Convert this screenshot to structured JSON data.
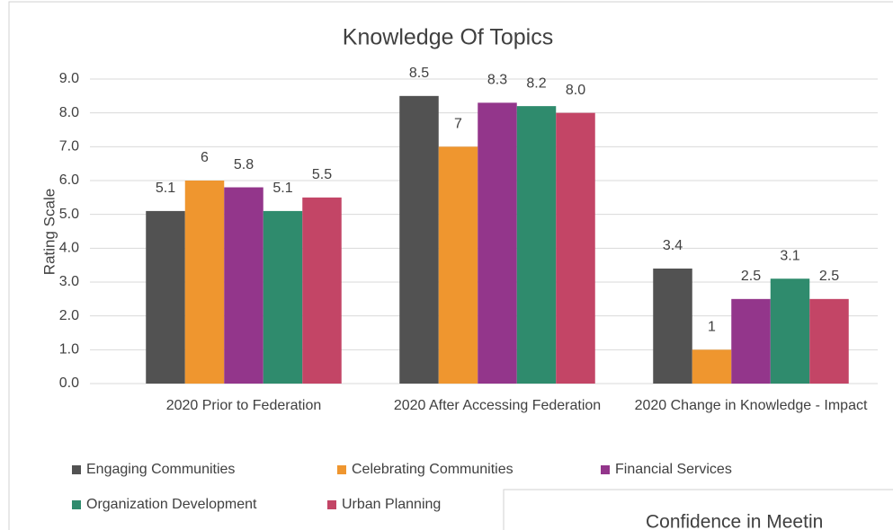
{
  "chart_data": {
    "type": "bar",
    "title": "Knowledge Of Topics",
    "y_label": "Rating Scale",
    "categories": [
      "2020 Prior to Federation",
      "2020 After Accessing Federation",
      "2020 Change in Knowledge - Impact"
    ],
    "series": [
      {
        "name": "Engaging Communities",
        "color": "#525252",
        "values": [
          5.1,
          8.5,
          3.4
        ]
      },
      {
        "name": "Celebrating Communities",
        "color": "#ef962f",
        "values": [
          6,
          7,
          1
        ]
      },
      {
        "name": "Financial Services",
        "color": "#93368b",
        "values": [
          5.8,
          8.3,
          2.5
        ]
      },
      {
        "name": "Organization Development",
        "color": "#2f8b6d",
        "values": [
          5.1,
          8.2,
          3.1
        ]
      },
      {
        "name": "Urban Planning",
        "color": "#c34566",
        "values": [
          5.5,
          8,
          2.5
        ],
        "value_labels": [
          "5.5",
          "8.0",
          "2.5"
        ]
      }
    ],
    "ylim": [
      0,
      9
    ],
    "yticks": [
      {
        "value": 0,
        "label": "0.0"
      },
      {
        "value": 1,
        "label": "1.0"
      },
      {
        "value": 2,
        "label": "2.0"
      },
      {
        "value": 3,
        "label": "3.0"
      },
      {
        "value": 4,
        "label": "4.0"
      },
      {
        "value": 5,
        "label": "5.0"
      },
      {
        "value": 6,
        "label": "6.0"
      },
      {
        "value": 7,
        "label": "7.0"
      },
      {
        "value": 8,
        "label": "8.0"
      },
      {
        "value": 9,
        "label": "9.0"
      }
    ],
    "grid": true,
    "legend": "bottom"
  },
  "next_panel": {
    "title": "Confidence in Meetin"
  }
}
